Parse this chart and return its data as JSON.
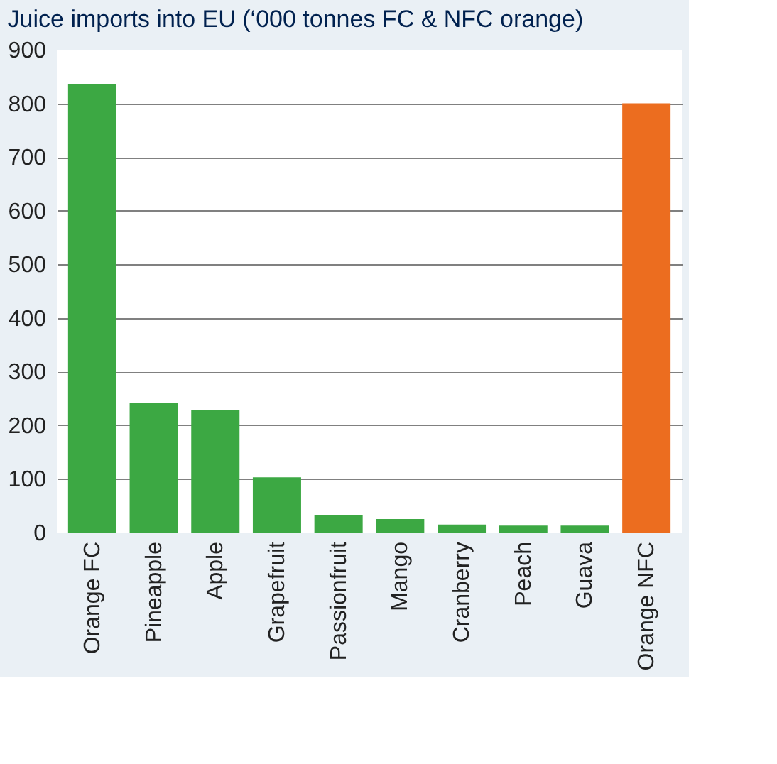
{
  "chart_data": {
    "type": "bar",
    "title": "Juice imports into EU (‘000 tonnes FC & NFC orange)",
    "categories": [
      "Orange FC",
      "Pineapple",
      "Apple",
      "Grapefruit",
      "Passionfruit",
      "Mango",
      "Cranberry",
      "Peach",
      "Guava",
      "Orange NFC"
    ],
    "values": [
      836,
      241,
      228,
      103,
      32,
      25,
      15,
      13,
      13,
      800
    ],
    "colors": [
      "#3ca843",
      "#3ca843",
      "#3ca843",
      "#3ca843",
      "#3ca843",
      "#3ca843",
      "#3ca843",
      "#3ca843",
      "#3ca843",
      "#ec6d1f"
    ],
    "ylim": [
      0,
      900
    ],
    "yticks": [
      0,
      100,
      200,
      300,
      400,
      500,
      600,
      700,
      800,
      900
    ],
    "grid": "y"
  }
}
